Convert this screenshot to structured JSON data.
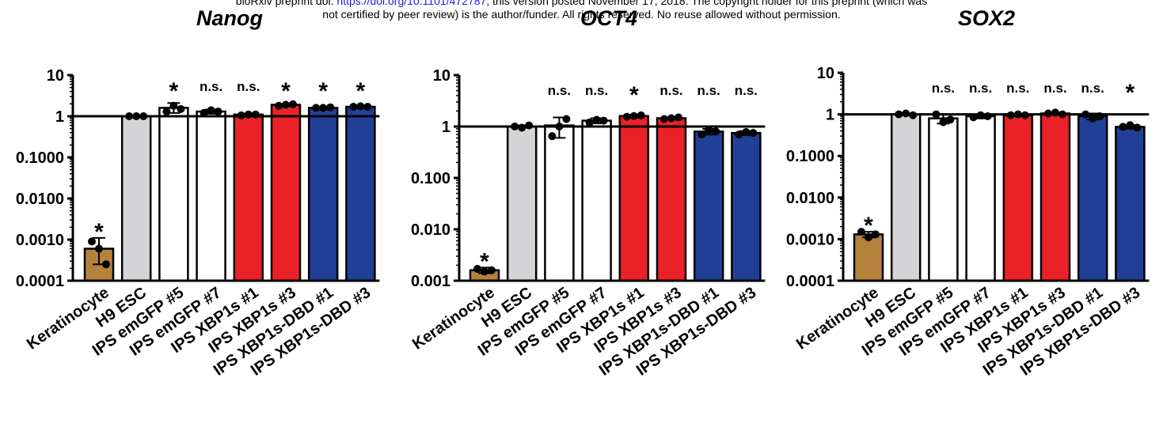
{
  "header": {
    "line1_prefix": "bioRxiv preprint doi: ",
    "line1_link": "https://doi.org/10.1101/472787",
    "line1_suffix": "; this version posted November 17, 2018. The copyright holder for this preprint (which was",
    "line2": "not certified by peer review) is the author/funder. All rights reserved. No reuse allowed without permission."
  },
  "colors": {
    "keratinocyte": "#b5823c",
    "h9_esc": "#d4d4d6",
    "emgfp": "#ffffff",
    "xbp1s": "#ea2127",
    "xbp1s_dbd": "#213f97"
  },
  "chart_data": [
    {
      "type": "bar",
      "title": "Nanog",
      "scale": "log",
      "ylim": [
        0.0001,
        10
      ],
      "yticks": [
        "10",
        "1",
        "0.1000",
        "0.0100",
        "0.0010",
        "0.0001"
      ],
      "categories": [
        "Keratinocyte",
        "H9 ESC",
        "IPS emGFP #5",
        "IPS emGFP #7",
        "IPS XBP1s #1",
        "IPS XBP1s #3",
        "IPS XBP1s-DBD #1",
        "IPS XBP1s-DBD #3"
      ],
      "values": [
        0.0006,
        1.0,
        1.6,
        1.3,
        1.1,
        1.9,
        1.6,
        1.7
      ],
      "error_low": [
        0.00025,
        1.0,
        1.2,
        1.15,
        1.05,
        1.8,
        1.55,
        1.6
      ],
      "error_high": [
        0.0011,
        1.0,
        2.1,
        1.45,
        1.15,
        2.0,
        1.7,
        1.8
      ],
      "points": [
        [
          0.0009,
          0.0006,
          0.00025
        ],
        [
          1.0,
          1.0,
          1.0
        ],
        [
          1.3,
          1.8,
          1.5
        ],
        [
          1.2,
          1.4,
          1.3
        ],
        [
          1.05,
          1.1,
          1.1
        ],
        [
          1.8,
          1.9,
          1.95
        ],
        [
          1.6,
          1.6,
          1.65
        ],
        [
          1.7,
          1.75,
          1.7
        ]
      ],
      "reference_line": 1,
      "annotations": [
        "*",
        "",
        "*",
        "n.s.",
        "n.s.",
        "*",
        "*",
        "*"
      ]
    },
    {
      "type": "bar",
      "title": "OCT4",
      "scale": "log",
      "ylim": [
        0.001,
        10
      ],
      "yticks": [
        "10",
        "1",
        "0.100",
        "0.010",
        "0.001"
      ],
      "categories": [
        "Keratinocyte",
        "H9 ESC",
        "IPS emGFP #5",
        "IPS emGFP #7",
        "IPS XBP1s #1",
        "IPS XBP1s #3",
        "IPS XBP1s-DBD #1",
        "IPS XBP1s-DBD #3"
      ],
      "values": [
        0.0016,
        1.0,
        1.05,
        1.3,
        1.6,
        1.45,
        0.8,
        0.75
      ],
      "error_low": [
        0.0014,
        0.95,
        0.6,
        1.15,
        1.5,
        1.4,
        0.7,
        0.68
      ],
      "error_high": [
        0.0018,
        1.05,
        1.5,
        1.45,
        1.7,
        1.5,
        0.9,
        0.82
      ],
      "points": [
        [
          0.0017,
          0.0015,
          0.0016
        ],
        [
          1.0,
          0.95,
          1.05
        ],
        [
          0.65,
          1.0,
          1.4
        ],
        [
          1.2,
          1.35,
          1.3
        ],
        [
          1.55,
          1.6,
          1.65
        ],
        [
          1.4,
          1.45,
          1.5
        ],
        [
          0.7,
          0.85,
          0.8
        ],
        [
          0.7,
          0.78,
          0.75
        ]
      ],
      "reference_line": 1,
      "annotations": [
        "*",
        "",
        "n.s.",
        "n.s.",
        "*",
        "n.s.",
        "n.s.",
        "n.s."
      ]
    },
    {
      "type": "bar",
      "title": "SOX2",
      "scale": "log",
      "ylim": [
        0.0001,
        10
      ],
      "yticks": [
        "10",
        "1",
        "0.1000",
        "0.0100",
        "0.0010",
        "0.0001"
      ],
      "categories": [
        "Keratinocyte",
        "H9 ESC",
        "IPS emGFP #5",
        "IPS emGFP #7",
        "IPS XBP1s #1",
        "IPS XBP1s #3",
        "IPS XBP1s-DBD #1",
        "IPS XBP1s-DBD #3"
      ],
      "values": [
        0.0013,
        1.0,
        0.8,
        0.9,
        0.95,
        1.05,
        0.9,
        0.5
      ],
      "error_low": [
        0.0011,
        0.95,
        0.6,
        0.8,
        0.9,
        1.0,
        0.75,
        0.45
      ],
      "error_high": [
        0.0015,
        1.05,
        1.0,
        1.0,
        1.0,
        1.1,
        1.05,
        0.55
      ],
      "points": [
        [
          0.0015,
          0.0011,
          0.0013
        ],
        [
          1.0,
          1.05,
          0.95
        ],
        [
          1.0,
          0.65,
          0.75
        ],
        [
          0.85,
          0.95,
          0.9
        ],
        [
          0.95,
          1.0,
          0.95
        ],
        [
          1.05,
          1.1,
          1.0
        ],
        [
          1.0,
          0.8,
          0.9
        ],
        [
          0.5,
          0.55,
          0.48
        ]
      ],
      "reference_line": 1,
      "annotations": [
        "*",
        "",
        "n.s.",
        "n.s.",
        "n.s.",
        "n.s.",
        "n.s.",
        "*"
      ]
    }
  ]
}
